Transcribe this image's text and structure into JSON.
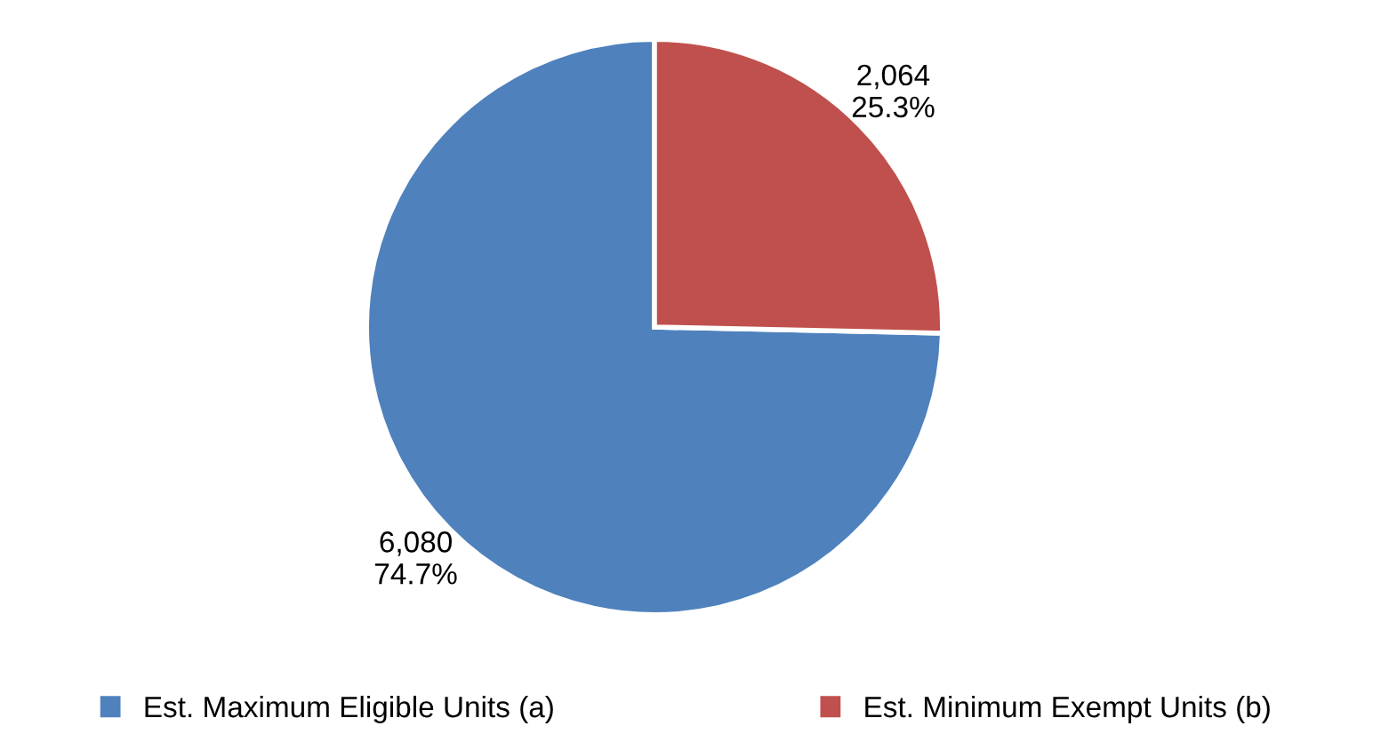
{
  "chart_data": {
    "type": "pie",
    "categories": [
      "Est. Maximum Eligible Units (a)",
      "Est. Minimum Exempt Units (b)"
    ],
    "values": [
      6080,
      2064
    ],
    "colors": [
      "#4f81bd",
      "#c0504d"
    ],
    "value_labels": [
      "6,080\n74.7%",
      "2,064\n25.3%"
    ],
    "legend": "bottom"
  }
}
